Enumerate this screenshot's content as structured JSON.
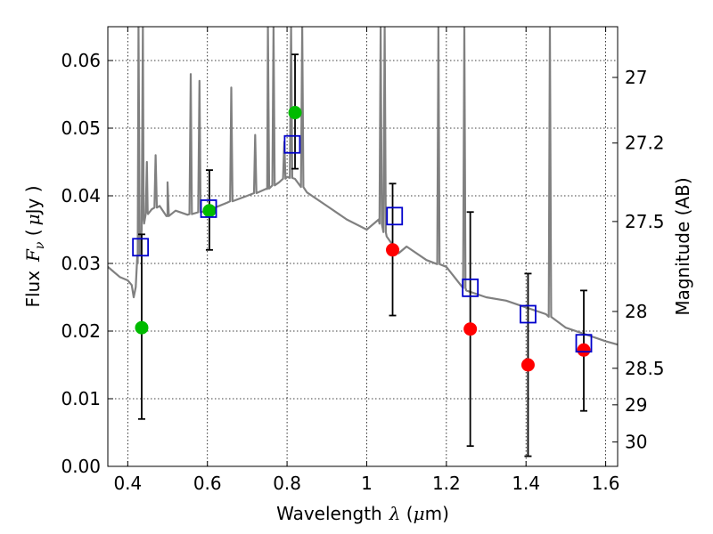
{
  "chart_data": {
    "type": "scatter",
    "title": "",
    "xlabel": "Wavelength",
    "xlabel_symbol": "λ",
    "xlabel_unit_open": " (",
    "xlabel_unit_mu": "μ",
    "xlabel_unit_close": "m)",
    "ylabel_flux": "Flux",
    "ylabel_symbol": "F",
    "ylabel_sub": "ν",
    "ylabel_open": " (",
    "ylabel_mu": "μ",
    "ylabel_close": "Jy )",
    "y2label": "Magnitude (AB)",
    "xlim": [
      0.35,
      1.63
    ],
    "ylim": [
      0.0,
      0.065
    ],
    "x_ticks": [
      0.4,
      0.6,
      0.8,
      1.0,
      1.2,
      1.4,
      1.6
    ],
    "x_tick_labels": [
      "0.4",
      "0.6",
      "0.8",
      "1",
      "1.2",
      "1.4",
      "1.6"
    ],
    "y_ticks": [
      0.0,
      0.01,
      0.02,
      0.03,
      0.04,
      0.05,
      0.06
    ],
    "y_tick_labels": [
      "0.00",
      "0.01",
      "0.02",
      "0.03",
      "0.04",
      "0.05",
      "0.06"
    ],
    "y2_ticks": [
      {
        "label": "27",
        "flux": 0.0575
      },
      {
        "label": "27.2",
        "flux": 0.0478
      },
      {
        "label": "27.5",
        "flux": 0.0362
      },
      {
        "label": "28",
        "flux": 0.0229
      },
      {
        "label": "28.5",
        "flux": 0.0145
      },
      {
        "label": "29",
        "flux": 0.0091
      },
      {
        "label": "30",
        "flux": 0.0036
      }
    ],
    "grid": true,
    "colors": {
      "green": "#00bb00",
      "red": "#ff0000",
      "square": "#0000cc",
      "model": "#808080",
      "error": "#000000"
    },
    "model_sed": {
      "x": [
        0.35,
        0.38,
        0.4,
        0.41,
        0.415,
        0.42,
        0.425,
        0.43,
        0.435,
        0.44,
        0.45,
        0.46,
        0.48,
        0.5,
        0.52,
        0.55,
        0.6,
        0.65,
        0.7,
        0.75,
        0.78,
        0.8,
        0.82,
        0.85,
        0.9,
        0.95,
        1.0,
        1.03,
        1.05,
        1.08,
        1.1,
        1.15,
        1.2,
        1.25,
        1.3,
        1.35,
        1.4,
        1.45,
        1.5,
        1.55,
        1.6,
        1.63
      ],
      "y": [
        0.0295,
        0.028,
        0.0275,
        0.0268,
        0.025,
        0.0265,
        0.03,
        0.033,
        0.035,
        0.0365,
        0.0375,
        0.038,
        0.0385,
        0.037,
        0.0378,
        0.0372,
        0.0378,
        0.039,
        0.04,
        0.041,
        0.042,
        0.0428,
        0.0425,
        0.0405,
        0.0385,
        0.0365,
        0.035,
        0.0365,
        0.034,
        0.0315,
        0.0325,
        0.0305,
        0.0295,
        0.026,
        0.025,
        0.0245,
        0.0235,
        0.0225,
        0.0205,
        0.0195,
        0.0185,
        0.018
      ],
      "lines": [
        {
          "x": 0.427,
          "peak": 0.065
        },
        {
          "x": 0.438,
          "peak": 0.065
        },
        {
          "x": 0.448,
          "peak": 0.045
        },
        {
          "x": 0.47,
          "peak": 0.046
        },
        {
          "x": 0.5,
          "peak": 0.042
        },
        {
          "x": 0.558,
          "peak": 0.058
        },
        {
          "x": 0.58,
          "peak": 0.057
        },
        {
          "x": 0.66,
          "peak": 0.056
        },
        {
          "x": 0.72,
          "peak": 0.049
        },
        {
          "x": 0.752,
          "peak": 0.065
        },
        {
          "x": 0.766,
          "peak": 0.065
        },
        {
          "x": 0.793,
          "peak": 0.048
        },
        {
          "x": 0.81,
          "peak": 0.065
        },
        {
          "x": 0.838,
          "peak": 0.065
        },
        {
          "x": 1.035,
          "peak": 0.065
        },
        {
          "x": 1.045,
          "peak": 0.065
        },
        {
          "x": 1.18,
          "peak": 0.065
        },
        {
          "x": 1.245,
          "peak": 0.065
        },
        {
          "x": 1.46,
          "peak": 0.065
        }
      ]
    },
    "series": [
      {
        "marker": "circle",
        "color_key": "green",
        "x": [
          0.435,
          0.605,
          0.82
        ],
        "y": [
          0.0205,
          0.0378,
          0.0523
        ]
      },
      {
        "marker": "circle",
        "color_key": "red",
        "x": [
          1.065,
          1.26,
          1.405,
          1.545
        ],
        "y": [
          0.032,
          0.0203,
          0.015,
          0.0172
        ]
      },
      {
        "marker": "open-square",
        "color_key": "square",
        "x": [
          0.432,
          0.603,
          0.813,
          1.07,
          1.26,
          1.405,
          1.545
        ],
        "y": [
          0.0324,
          0.0381,
          0.0476,
          0.037,
          0.0264,
          0.0225,
          0.0182
        ]
      }
    ],
    "error_bars": [
      {
        "x": 0.435,
        "low": 0.007,
        "high": 0.0343
      },
      {
        "x": 0.605,
        "low": 0.032,
        "high": 0.0438
      },
      {
        "x": 0.82,
        "low": 0.044,
        "high": 0.0609
      },
      {
        "x": 1.065,
        "low": 0.0223,
        "high": 0.0418
      },
      {
        "x": 1.26,
        "low": 0.003,
        "high": 0.0376
      },
      {
        "x": 1.405,
        "low": 0.0015,
        "high": 0.0285
      },
      {
        "x": 1.545,
        "low": 0.0082,
        "high": 0.026
      }
    ]
  }
}
